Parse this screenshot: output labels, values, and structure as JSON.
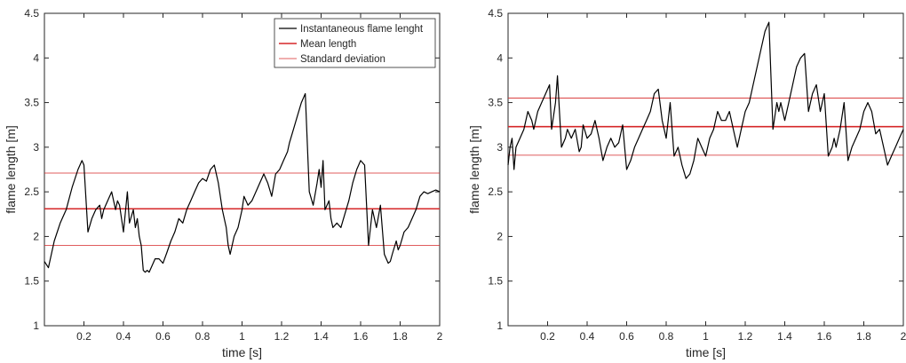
{
  "chart_data": [
    {
      "type": "line",
      "xlabel": "time [s]",
      "ylabel": "flame length [m]",
      "xlim": [
        0,
        2
      ],
      "ylim": [
        1,
        4.5
      ],
      "xticks": [
        0.2,
        0.4,
        0.6,
        0.8,
        1,
        1.2,
        1.4,
        1.6,
        1.8,
        2
      ],
      "xtick_labels": [
        "0.2",
        "0.4",
        "0.6",
        "0.8",
        "1",
        "1.2",
        "1.4",
        "1.6",
        "1.8",
        "2"
      ],
      "yticks": [
        1,
        1.5,
        2,
        2.5,
        3,
        3.5,
        4,
        4.5
      ],
      "ytick_labels": [
        "1",
        "1.5",
        "2",
        "2.5",
        "3",
        "3.5",
        "4",
        "4.5"
      ],
      "grid": false,
      "legend_position": "top-right",
      "legend": [
        "Instantaneous flame lenght",
        "Mean length",
        "Standard deviation"
      ],
      "colors": {
        "series": "#000000",
        "mean": "#d62728",
        "std": "#d62728"
      },
      "series": [
        {
          "name": "Instantaneous flame lenght",
          "x": [
            0.0,
            0.02,
            0.05,
            0.08,
            0.11,
            0.14,
            0.17,
            0.19,
            0.2,
            0.22,
            0.24,
            0.26,
            0.28,
            0.29,
            0.3,
            0.32,
            0.34,
            0.36,
            0.37,
            0.38,
            0.4,
            0.42,
            0.43,
            0.45,
            0.46,
            0.47,
            0.48,
            0.49,
            0.5,
            0.51,
            0.52,
            0.53,
            0.55,
            0.56,
            0.58,
            0.6,
            0.62,
            0.64,
            0.66,
            0.68,
            0.7,
            0.72,
            0.74,
            0.76,
            0.78,
            0.8,
            0.82,
            0.84,
            0.86,
            0.88,
            0.9,
            0.92,
            0.93,
            0.94,
            0.96,
            0.98,
            1.0,
            1.01,
            1.03,
            1.05,
            1.07,
            1.09,
            1.11,
            1.13,
            1.15,
            1.17,
            1.19,
            1.21,
            1.23,
            1.24,
            1.26,
            1.28,
            1.3,
            1.32,
            1.34,
            1.36,
            1.38,
            1.39,
            1.4,
            1.41,
            1.42,
            1.44,
            1.45,
            1.46,
            1.48,
            1.5,
            1.52,
            1.54,
            1.56,
            1.58,
            1.6,
            1.62,
            1.64,
            1.66,
            1.68,
            1.7,
            1.72,
            1.74,
            1.75,
            1.76,
            1.78,
            1.79,
            1.8,
            1.82,
            1.84,
            1.86,
            1.88,
            1.9,
            1.92,
            1.94,
            1.96,
            1.98,
            2.0
          ],
          "y": [
            1.72,
            1.65,
            1.95,
            2.15,
            2.3,
            2.55,
            2.75,
            2.85,
            2.8,
            2.05,
            2.2,
            2.3,
            2.35,
            2.2,
            2.3,
            2.4,
            2.5,
            2.3,
            2.4,
            2.35,
            2.05,
            2.5,
            2.15,
            2.3,
            2.1,
            2.2,
            2.0,
            1.9,
            1.62,
            1.6,
            1.62,
            1.6,
            1.7,
            1.75,
            1.75,
            1.7,
            1.82,
            1.95,
            2.05,
            2.2,
            2.15,
            2.3,
            2.4,
            2.5,
            2.6,
            2.65,
            2.62,
            2.75,
            2.8,
            2.6,
            2.3,
            2.1,
            1.9,
            1.8,
            2.0,
            2.1,
            2.3,
            2.45,
            2.35,
            2.4,
            2.5,
            2.6,
            2.7,
            2.6,
            2.45,
            2.7,
            2.75,
            2.85,
            2.95,
            3.05,
            3.2,
            3.35,
            3.5,
            3.6,
            2.5,
            2.35,
            2.6,
            2.75,
            2.55,
            2.85,
            2.3,
            2.4,
            2.2,
            2.1,
            2.15,
            2.1,
            2.25,
            2.4,
            2.6,
            2.75,
            2.85,
            2.8,
            1.9,
            2.3,
            2.1,
            2.35,
            1.8,
            1.7,
            1.72,
            1.8,
            1.95,
            1.85,
            1.9,
            2.05,
            2.1,
            2.2,
            2.3,
            2.45,
            2.5,
            2.48,
            2.5,
            2.52,
            2.5
          ]
        }
      ],
      "mean": 2.31,
      "std_lines": [
        1.9,
        2.71
      ]
    },
    {
      "type": "line",
      "xlabel": "time [s]",
      "ylabel": "flame length [m]",
      "xlim": [
        0,
        2
      ],
      "ylim": [
        1,
        4.5
      ],
      "xticks": [
        0.2,
        0.4,
        0.6,
        0.8,
        1,
        1.2,
        1.4,
        1.6,
        1.8,
        2
      ],
      "xtick_labels": [
        "0.2",
        "0.4",
        "0.6",
        "0.8",
        "1",
        "1.2",
        "1.4",
        "1.6",
        "1.8",
        "2"
      ],
      "yticks": [
        1,
        1.5,
        2,
        2.5,
        3,
        3.5,
        4,
        4.5
      ],
      "ytick_labels": [
        "1",
        "1.5",
        "2",
        "2.5",
        "3",
        "3.5",
        "4",
        "4.5"
      ],
      "grid": false,
      "colors": {
        "series": "#000000",
        "mean": "#d62728",
        "std": "#d62728"
      },
      "series": [
        {
          "x": [
            0.0,
            0.01,
            0.02,
            0.03,
            0.04,
            0.06,
            0.08,
            0.1,
            0.12,
            0.13,
            0.15,
            0.17,
            0.19,
            0.21,
            0.22,
            0.24,
            0.25,
            0.27,
            0.29,
            0.3,
            0.32,
            0.34,
            0.36,
            0.37,
            0.38,
            0.4,
            0.42,
            0.44,
            0.46,
            0.48,
            0.5,
            0.52,
            0.54,
            0.56,
            0.58,
            0.6,
            0.62,
            0.64,
            0.66,
            0.68,
            0.7,
            0.72,
            0.74,
            0.76,
            0.78,
            0.8,
            0.82,
            0.84,
            0.86,
            0.88,
            0.9,
            0.92,
            0.94,
            0.96,
            0.98,
            1.0,
            1.02,
            1.04,
            1.06,
            1.08,
            1.1,
            1.12,
            1.14,
            1.16,
            1.18,
            1.2,
            1.22,
            1.24,
            1.26,
            1.28,
            1.3,
            1.32,
            1.34,
            1.36,
            1.37,
            1.38,
            1.4,
            1.42,
            1.44,
            1.46,
            1.48,
            1.5,
            1.52,
            1.54,
            1.56,
            1.58,
            1.6,
            1.62,
            1.64,
            1.65,
            1.66,
            1.68,
            1.7,
            1.72,
            1.74,
            1.76,
            1.78,
            1.8,
            1.82,
            1.84,
            1.86,
            1.88,
            1.9,
            1.92,
            1.94,
            1.96,
            1.98,
            2.0
          ],
          "y": [
            2.8,
            3.0,
            3.1,
            2.75,
            3.0,
            3.1,
            3.2,
            3.4,
            3.3,
            3.2,
            3.4,
            3.5,
            3.6,
            3.7,
            3.2,
            3.5,
            3.8,
            3.0,
            3.1,
            3.2,
            3.1,
            3.2,
            2.95,
            3.0,
            3.25,
            3.1,
            3.15,
            3.3,
            3.1,
            2.85,
            3.0,
            3.1,
            3.0,
            3.05,
            3.25,
            2.75,
            2.85,
            3.0,
            3.1,
            3.2,
            3.3,
            3.4,
            3.6,
            3.65,
            3.3,
            3.1,
            3.5,
            2.9,
            3.0,
            2.8,
            2.65,
            2.7,
            2.85,
            3.1,
            3.0,
            2.9,
            3.1,
            3.2,
            3.4,
            3.3,
            3.3,
            3.4,
            3.2,
            3.0,
            3.2,
            3.4,
            3.5,
            3.7,
            3.9,
            4.1,
            4.3,
            4.4,
            3.2,
            3.5,
            3.4,
            3.5,
            3.3,
            3.5,
            3.7,
            3.9,
            4.0,
            4.05,
            3.4,
            3.6,
            3.7,
            3.4,
            3.6,
            2.9,
            3.0,
            3.1,
            3.0,
            3.2,
            3.5,
            2.85,
            3.0,
            3.1,
            3.2,
            3.4,
            3.5,
            3.4,
            3.15,
            3.2,
            3.0,
            2.8,
            2.9,
            3.0,
            3.1,
            3.2
          ]
        }
      ],
      "mean": 3.23,
      "std_lines": [
        2.91,
        3.55
      ]
    }
  ]
}
